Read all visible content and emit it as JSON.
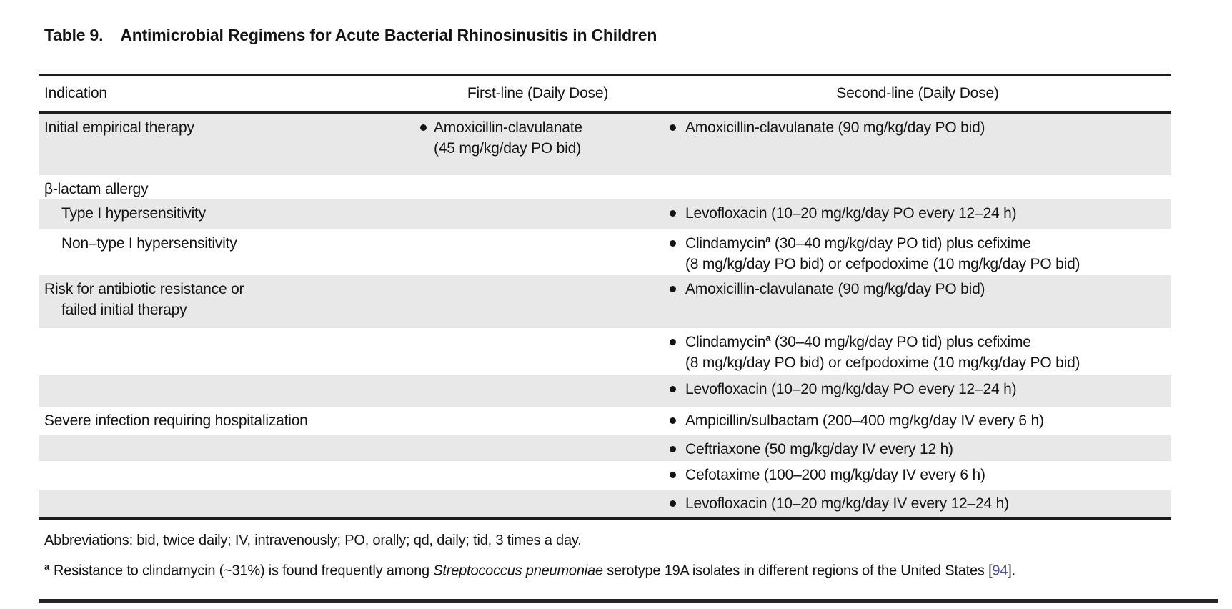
{
  "title": {
    "label": "Table 9.",
    "text": "Antimicrobial Regimens for Acute Bacterial Rhinosinusitis in Children"
  },
  "table": {
    "headers": [
      "Indication",
      "First-line (Daily Dose)",
      "Second-line (Daily Dose)"
    ],
    "shade_color": "#e8e8e8",
    "rows": [
      {
        "shaded": true,
        "indication": {
          "indent": false,
          "lines": [
            [
              {
                "t": "Initial empirical therapy"
              }
            ]
          ]
        },
        "first": {
          "bullet": true,
          "lines": [
            [
              {
                "t": "Amoxicillin-clavulanate"
              }
            ],
            [
              {
                "t": "(45 mg/kg/day PO bid)"
              }
            ]
          ]
        },
        "second": {
          "bullet": true,
          "lines": [
            [
              {
                "t": "Amoxicillin-clavulanate (90 mg/kg/day PO bid)"
              }
            ]
          ]
        }
      },
      {
        "shaded": false,
        "indication": {
          "indent": false,
          "lines": [
            [
              {
                "t": "β-lactam allergy"
              }
            ]
          ]
        }
      },
      {
        "shaded": true,
        "indication": {
          "indent": true,
          "lines": [
            [
              {
                "t": "Type I hypersensitivity"
              }
            ]
          ]
        },
        "second": {
          "bullet": true,
          "lines": [
            [
              {
                "t": "Levofloxacin (10–20 mg/kg/day PO every 12–24 h)"
              }
            ]
          ]
        }
      },
      {
        "shaded": false,
        "indication": {
          "indent": true,
          "lines": [
            [
              {
                "t": "Non–type I hypersensitivity"
              }
            ]
          ]
        },
        "second": {
          "bullet": true,
          "lines": [
            [
              {
                "t": "Clindamycin"
              },
              {
                "t": "a",
                "sup": true
              },
              {
                "t": " (30–40 mg/kg/day PO tid) plus cefixime"
              }
            ],
            [
              {
                "t": "(8 mg/kg/day PO bid) or cefpodoxime (10 mg/kg/day PO bid)"
              }
            ]
          ]
        }
      },
      {
        "shaded": true,
        "indication": {
          "indent": false,
          "wrap_indent": true,
          "lines": [
            [
              {
                "t": "Risk for antibiotic resistance or"
              }
            ],
            [
              {
                "t": "failed initial therapy"
              }
            ]
          ]
        },
        "second": {
          "bullet": true,
          "lines": [
            [
              {
                "t": "Amoxicillin-clavulanate (90 mg/kg/day PO bid)"
              }
            ]
          ]
        }
      },
      {
        "shaded": false,
        "second": {
          "bullet": true,
          "lines": [
            [
              {
                "t": "Clindamycin"
              },
              {
                "t": "a",
                "sup": true
              },
              {
                "t": " (30–40 mg/kg/day PO tid) plus cefixime"
              }
            ],
            [
              {
                "t": "(8 mg/kg/day PO bid) or cefpodoxime (10 mg/kg/day PO bid)"
              }
            ]
          ]
        }
      },
      {
        "shaded": true,
        "second": {
          "bullet": true,
          "lines": [
            [
              {
                "t": "Levofloxacin (10–20 mg/kg/day PO every 12–24 h)"
              }
            ]
          ]
        }
      },
      {
        "shaded": false,
        "indication": {
          "indent": false,
          "lines": [
            [
              {
                "t": "Severe infection requiring hospitalization"
              }
            ]
          ]
        },
        "second": {
          "bullet": true,
          "lines": [
            [
              {
                "t": "Ampicillin/sulbactam (200–400 mg/kg/day IV every 6 h)"
              }
            ]
          ]
        }
      },
      {
        "shaded": true,
        "second": {
          "bullet": true,
          "lines": [
            [
              {
                "t": "Ceftriaxone (50 mg/kg/day IV every 12 h)"
              }
            ]
          ]
        }
      },
      {
        "shaded": false,
        "second": {
          "bullet": true,
          "lines": [
            [
              {
                "t": "Cefotaxime (100–200 mg/kg/day IV every 6 h)"
              }
            ]
          ]
        }
      },
      {
        "shaded": true,
        "second": {
          "bullet": true,
          "lines": [
            [
              {
                "t": "Levofloxacin (10–20 mg/kg/day IV every 12–24 h)"
              }
            ]
          ]
        }
      }
    ]
  },
  "footer": {
    "abbreviations": "Abbreviations: bid, twice daily; IV, intravenously; PO, orally; qd, daily; tid, 3 times a day.",
    "footnote_marker": "a",
    "footnote_segments": [
      {
        "t": "Resistance to clindamycin (~31%) is found frequently among "
      },
      {
        "t": "Streptococcus pneumoniae",
        "i": true
      },
      {
        "t": " serotype 19A isolates in different regions of the United States ["
      },
      {
        "t": "94",
        "link": true
      },
      {
        "t": "]."
      }
    ],
    "link_color": "#5151a2"
  }
}
